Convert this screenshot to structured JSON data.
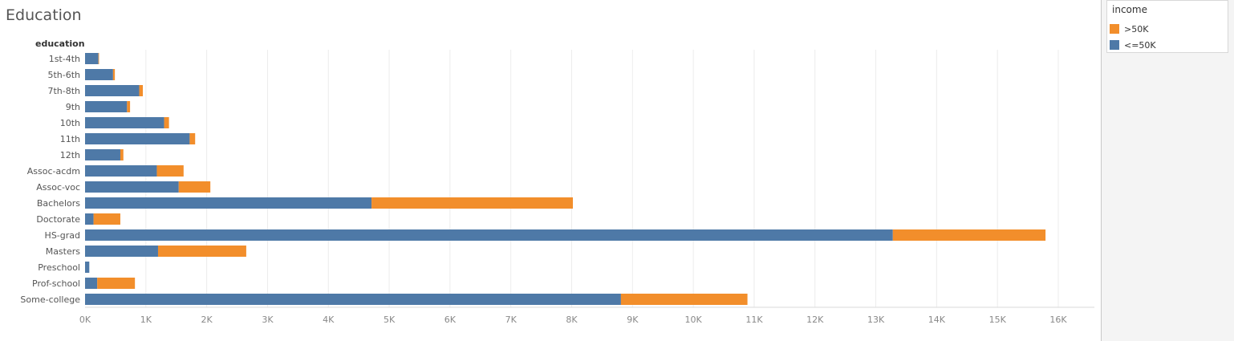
{
  "chart_data": {
    "type": "bar",
    "orientation": "horizontal",
    "stacked": true,
    "title": "Education",
    "ylabel": "education",
    "xlabel": "",
    "categories": [
      "1st-4th",
      "5th-6th",
      "7th-8th",
      "9th",
      "10th",
      "11th",
      "12th",
      "Assoc-acdm",
      "Assoc-voc",
      "Bachelors",
      "Doctorate",
      "HS-grad",
      "Masters",
      "Preschool",
      "Prof-school",
      "Some-college"
    ],
    "series": [
      {
        "name": "<=50K",
        "color": "#4e79a7",
        "values": [
          220,
          460,
          890,
          690,
          1300,
          1720,
          580,
          1180,
          1540,
          4710,
          140,
          13280,
          1200,
          70,
          200,
          8810
        ]
      },
      {
        "name": ">50K",
        "color": "#f28e2b",
        "values": [
          10,
          30,
          60,
          50,
          80,
          90,
          50,
          440,
          520,
          3310,
          440,
          2510,
          1450,
          0,
          620,
          2080
        ]
      }
    ],
    "xlim": [
      0,
      16000
    ],
    "xticks": [
      "0K",
      "1K",
      "2K",
      "3K",
      "4K",
      "5K",
      "6K",
      "7K",
      "8K",
      "9K",
      "10K",
      "11K",
      "12K",
      "13K",
      "14K",
      "15K",
      "16K"
    ],
    "xtick_values": [
      0,
      1000,
      2000,
      3000,
      4000,
      5000,
      6000,
      7000,
      8000,
      9000,
      10000,
      11000,
      12000,
      13000,
      14000,
      15000,
      16000
    ],
    "grid": "vertical",
    "legend_position": "right"
  },
  "legend": {
    "title": "income",
    "items": [
      {
        "label": ">50K",
        "color": "#f28e2b"
      },
      {
        "label": "<=50K",
        "color": "#4e79a7"
      }
    ]
  }
}
